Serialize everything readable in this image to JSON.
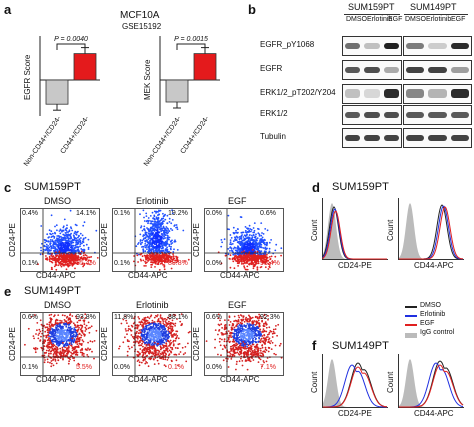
{
  "panel_a": {
    "letter": "a",
    "title": "MCF10A",
    "subtitle": "GSE15192",
    "charts": [
      {
        "ylabel": "EGFR Score",
        "pvalue": "P = 0.0040",
        "categories": [
          "Non-CD44+/CD24-",
          "CD44+/CD24-"
        ],
        "values": [
          -0.11,
          0.12
        ],
        "colors": [
          "#c8c8c8",
          "#e41a1c"
        ]
      },
      {
        "ylabel": "MEK Score",
        "pvalue": "P = 0.0015",
        "categories": [
          "Non-CD44+/CD24-",
          "CD44+/CD24-"
        ],
        "values": [
          -0.1,
          0.12
        ],
        "colors": [
          "#c8c8c8",
          "#e41a1c"
        ]
      }
    ]
  },
  "panel_b": {
    "letter": "b",
    "cell_lines": [
      "SUM159PT",
      "SUM149PT"
    ],
    "treatments": [
      "DMSO",
      "Erlotinib",
      "EGF"
    ],
    "rows": [
      "EGFR_pY1068",
      "EGFR",
      "ERK1/2_pT202/Y204",
      "ERK1/2",
      "Tubulin"
    ]
  },
  "panel_c": {
    "letter": "c",
    "title": "SUM159PT",
    "conditions": [
      "DMSO",
      "Erlotinib",
      "EGF"
    ],
    "xlabel": "CD44-APC",
    "ylabel": "CD24-PE",
    "quadrants": [
      {
        "ul": "0.4%",
        "ur": "14.1%",
        "ll": "0.1%",
        "lr": "85.4%"
      },
      {
        "ul": "0.1%",
        "ur": "19.2%",
        "ll": "0.1%",
        "lr": "80.8%"
      },
      {
        "ul": "0.0%",
        "ur": "0.6%",
        "ll": "0.0%",
        "lr": "99.4%"
      }
    ]
  },
  "panel_d": {
    "letter": "d",
    "title": "SUM159PT",
    "xlabels": [
      "CD24-PE",
      "CD44-APC"
    ],
    "ylabel": "Count"
  },
  "panel_e": {
    "letter": "e",
    "title": "SUM149PT",
    "conditions": [
      "DMSO",
      "Erlotinib",
      "EGF"
    ],
    "xlabel": "CD44-APC",
    "ylabel": "CD24-PE",
    "quadrants": [
      {
        "ul": "0.6%",
        "ur": "93.8%",
        "ll": "0.1%",
        "lr": "5.5%"
      },
      {
        "ul": "11.8%",
        "ur": "88.1%",
        "ll": "0.0%",
        "lr": "0.1%"
      },
      {
        "ul": "0.6%",
        "ur": "92.3%",
        "ll": "0.0%",
        "lr": "7.1%"
      }
    ]
  },
  "panel_f": {
    "letter": "f",
    "title": "SUM149PT",
    "xlabels": [
      "CD24-PE",
      "CD44-APC"
    ],
    "ylabel": "Count",
    "legend": [
      {
        "label": "DMSO",
        "color": "#222222"
      },
      {
        "label": "Erlotinib",
        "color": "#2030e0"
      },
      {
        "label": "EGF",
        "color": "#e02020"
      },
      {
        "label": "IgG control",
        "color": "#bbbbbb"
      }
    ]
  }
}
